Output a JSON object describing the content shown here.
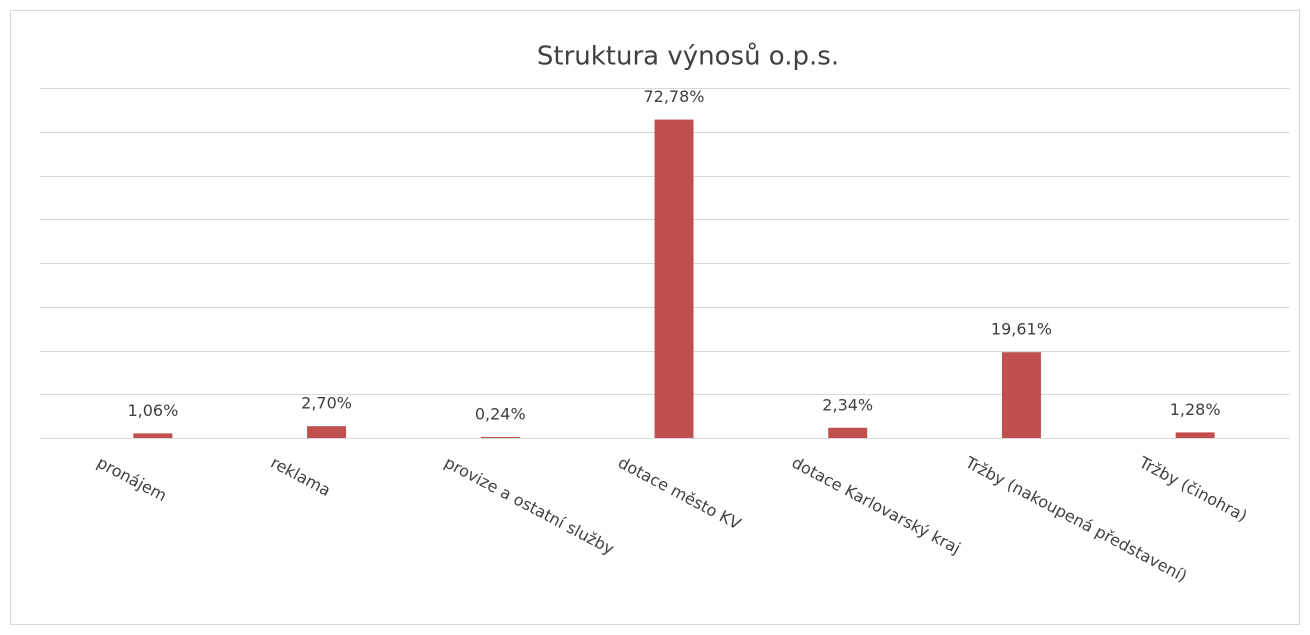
{
  "chart_data": {
    "type": "bar",
    "title": "Struktura výnosů o.p.s.",
    "categories": [
      "pronájem",
      "reklama",
      "provize a ostatní služby",
      "dotace město KV",
      "dotace Karlovarský kraj",
      "Tržby (nakoupená představení)",
      "Tržby (činohra)"
    ],
    "values": [
      1.06,
      2.7,
      0.24,
      72.78,
      2.34,
      19.61,
      1.28
    ],
    "value_labels": [
      "1,06%",
      "2,70%",
      "0,24%",
      "72,78%",
      "2,34%",
      "19,61%",
      "1,28%"
    ],
    "color": "#c0504d",
    "ylim": [
      0,
      80
    ],
    "yticks": [
      0,
      10,
      20,
      30,
      40,
      50,
      60,
      70,
      80
    ],
    "grid": true
  }
}
